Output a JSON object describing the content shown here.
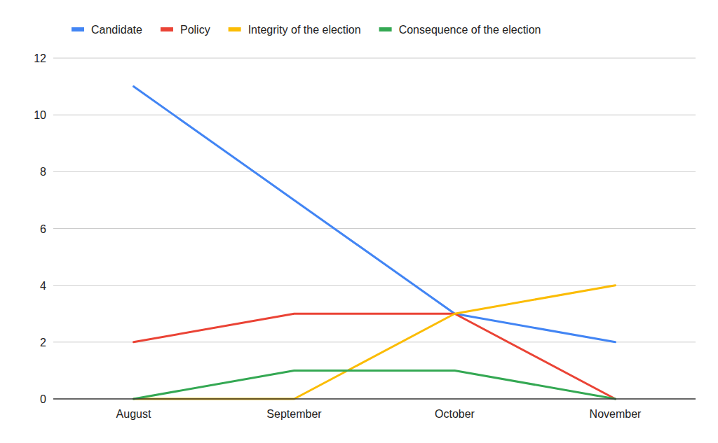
{
  "chart_data": {
    "type": "line",
    "categories": [
      "August",
      "September",
      "October",
      "November"
    ],
    "series": [
      {
        "name": "Candidate",
        "color": "#4285f4",
        "values": [
          11,
          7,
          3,
          2
        ]
      },
      {
        "name": "Policy",
        "color": "#ea4335",
        "values": [
          2,
          3,
          3,
          0
        ]
      },
      {
        "name": "Integrity of the election",
        "color": "#fbbc04",
        "values": [
          0,
          0,
          3,
          4
        ]
      },
      {
        "name": "Consequence of the election",
        "color": "#34a853",
        "values": [
          0,
          1,
          1,
          0
        ]
      }
    ],
    "ylim": [
      0,
      12
    ],
    "yticks": [
      0,
      2,
      4,
      6,
      8,
      10,
      12
    ],
    "grid": true,
    "legend": "top"
  }
}
